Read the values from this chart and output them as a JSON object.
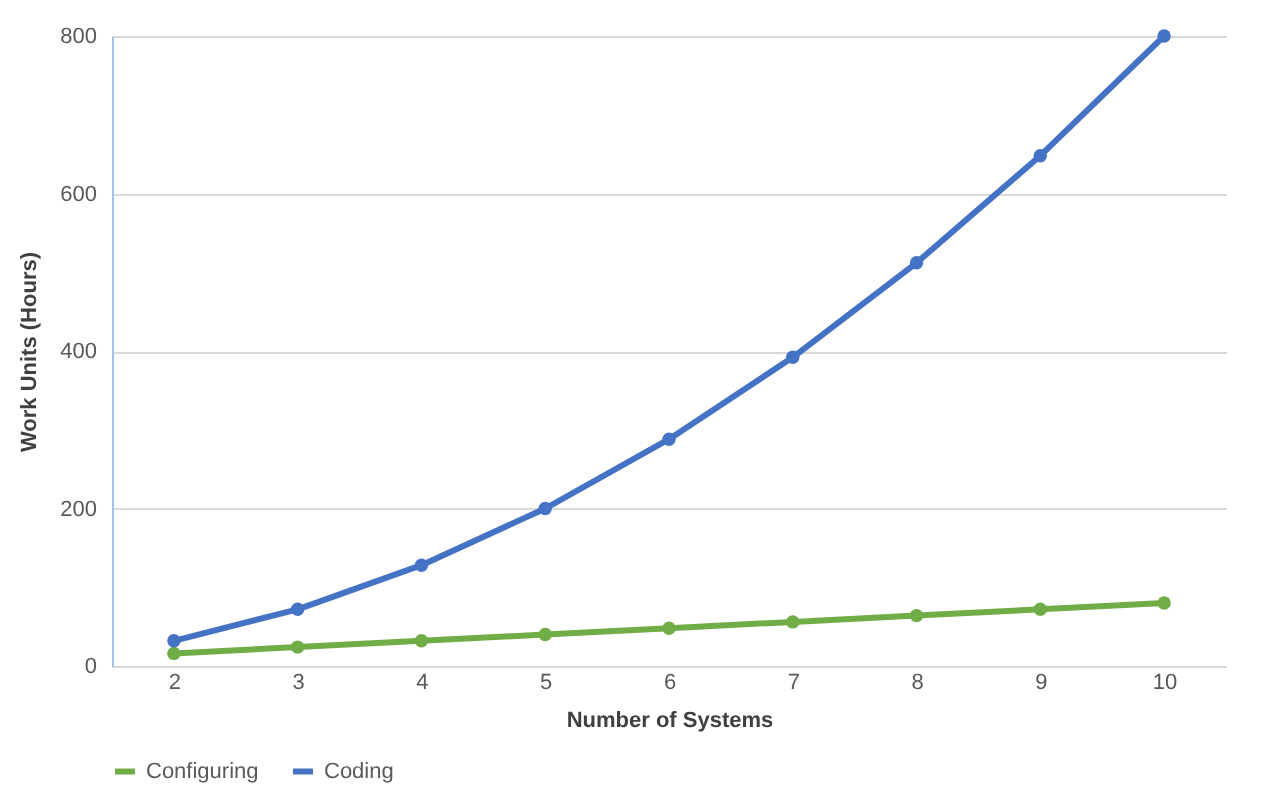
{
  "chart_data": {
    "type": "line",
    "xlabel": "Number of Systems",
    "ylabel": "Work Units (Hours)",
    "categories": [
      "2",
      "3",
      "4",
      "5",
      "6",
      "7",
      "8",
      "9",
      "10"
    ],
    "series": [
      {
        "name": "Configuring",
        "color": "#70ad47",
        "values": [
          16,
          24,
          32,
          40,
          48,
          56,
          64,
          72,
          80
        ]
      },
      {
        "name": "Coding",
        "color": "#4472c4",
        "values": [
          32,
          72,
          128,
          200,
          288,
          392,
          512,
          648,
          800
        ]
      }
    ],
    "ylim": [
      0,
      800
    ],
    "yticks": [
      0,
      200,
      400,
      600,
      800
    ],
    "grid": "y",
    "legend": "bottom",
    "marker": "circle",
    "line_style": "solid"
  }
}
